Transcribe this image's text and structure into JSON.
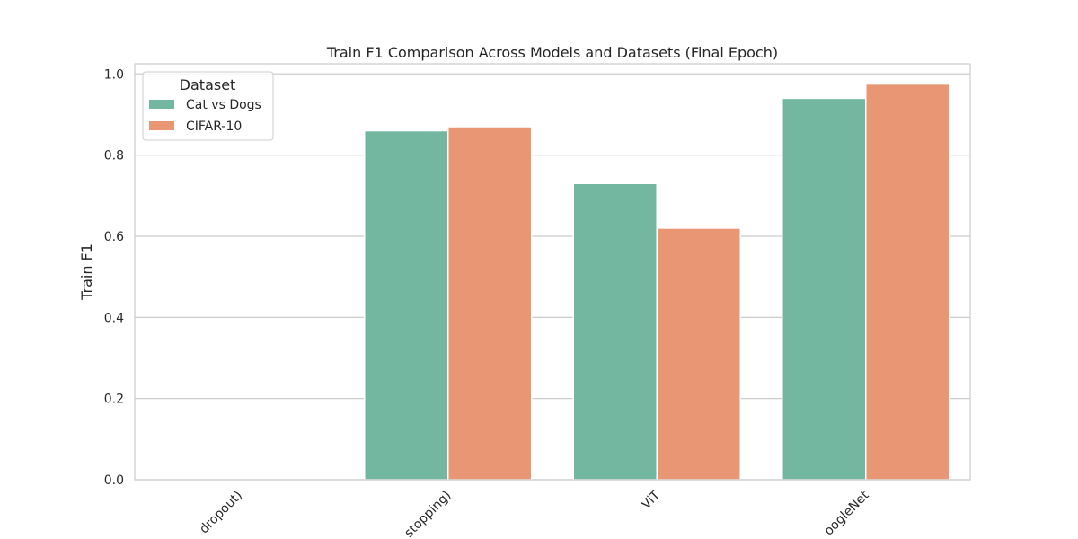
{
  "chart_data": {
    "type": "bar",
    "title": "Train F1 Comparison Across Models and Datasets (Final Epoch)",
    "xlabel": "",
    "ylabel": "Train F1",
    "categories": [
      "dropout)",
      "stopping)",
      "ViT",
      "oogleNet"
    ],
    "series": [
      {
        "name": "Cat vs Dogs",
        "color": "#74b7a1",
        "values": [
          0,
          0.86,
          0.73,
          0.94
        ]
      },
      {
        "name": "CIFAR-10",
        "color": "#e99674",
        "values": [
          0,
          0.87,
          0.62,
          0.975
        ]
      }
    ],
    "ylim": [
      0,
      1.025
    ],
    "yticks": [
      0.0,
      0.2,
      0.4,
      0.6,
      0.8,
      1.0
    ],
    "grid": true,
    "legend": {
      "title": "Dataset",
      "placement": "top-left"
    }
  }
}
